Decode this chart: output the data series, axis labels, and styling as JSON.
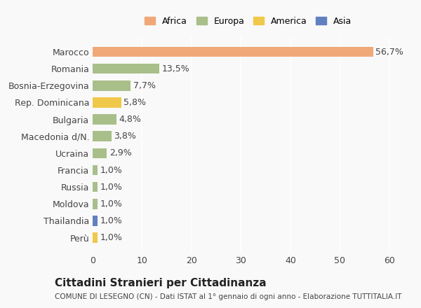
{
  "countries": [
    "Marocco",
    "Romania",
    "Bosnia-Erzegovina",
    "Rep. Dominicana",
    "Bulgaria",
    "Macedonia d/N.",
    "Ucraina",
    "Francia",
    "Russia",
    "Moldova",
    "Thailandia",
    "Perù"
  ],
  "values": [
    56.7,
    13.5,
    7.7,
    5.8,
    4.8,
    3.8,
    2.9,
    1.0,
    1.0,
    1.0,
    1.0,
    1.0
  ],
  "labels": [
    "56,7%",
    "13,5%",
    "7,7%",
    "5,8%",
    "4,8%",
    "3,8%",
    "2,9%",
    "1,0%",
    "1,0%",
    "1,0%",
    "1,0%",
    "1,0%"
  ],
  "colors": [
    "#F0A878",
    "#A8BF8A",
    "#A8BF8A",
    "#F0C84A",
    "#A8BF8A",
    "#A8BF8A",
    "#A8BF8A",
    "#A8BF8A",
    "#A8BF8A",
    "#A8BF8A",
    "#6080C0",
    "#F0C84A"
  ],
  "legend": [
    {
      "label": "Africa",
      "color": "#F0A878"
    },
    {
      "label": "Europa",
      "color": "#A8BF8A"
    },
    {
      "label": "America",
      "color": "#F0C84A"
    },
    {
      "label": "Asia",
      "color": "#6080C0"
    }
  ],
  "xlim": [
    0,
    63
  ],
  "xticks": [
    0,
    10,
    20,
    30,
    40,
    50,
    60
  ],
  "title": "Cittadini Stranieri per Cittadinanza",
  "subtitle": "COMUNE DI LESEGNO (CN) - Dati ISTAT al 1° gennaio di ogni anno - Elaborazione TUTTITALIA.IT",
  "background_color": "#f9f9f9",
  "bar_height": 0.6,
  "label_fontsize": 9,
  "tick_fontsize": 9
}
